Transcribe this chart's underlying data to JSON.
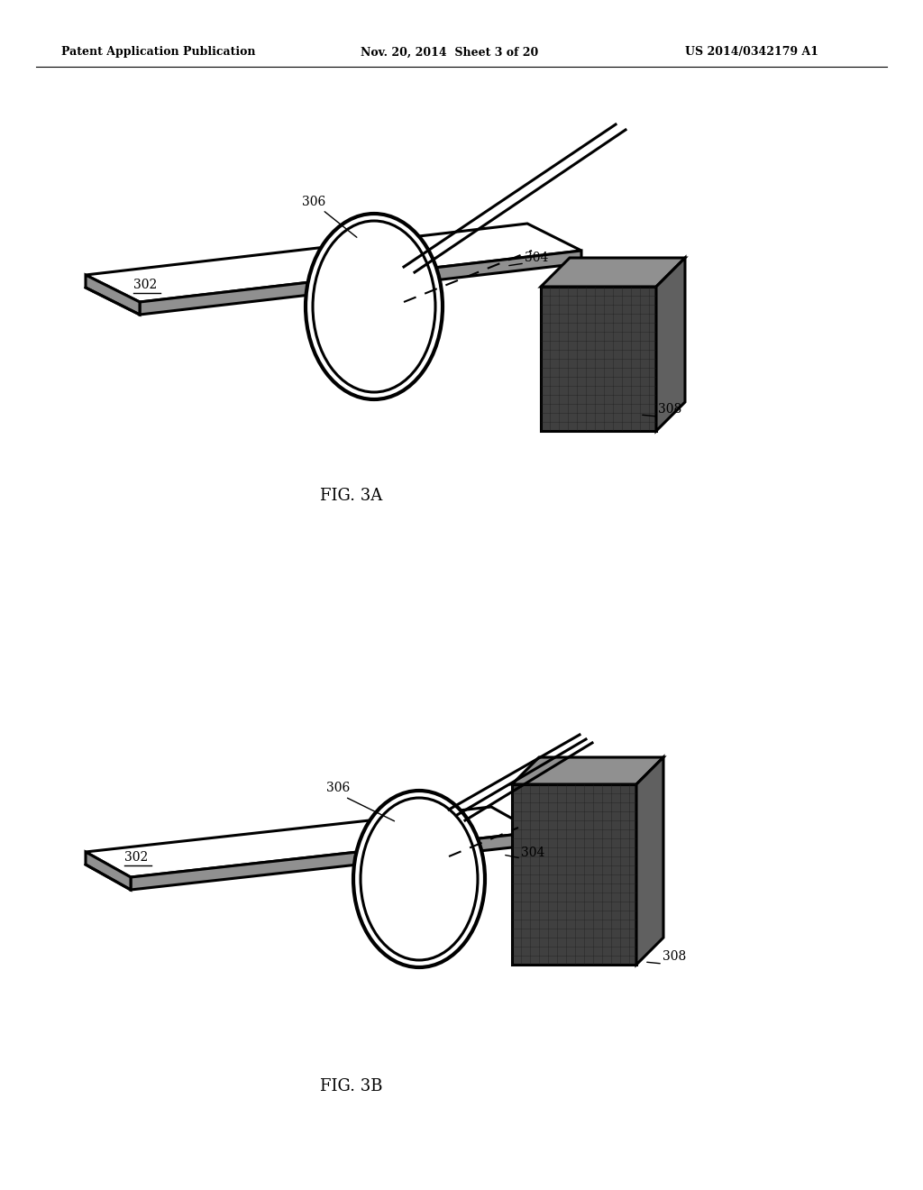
{
  "bg_color": "#ffffff",
  "text_color": "#000000",
  "line_color": "#000000",
  "header_left": "Patent Application Publication",
  "header_mid": "Nov. 20, 2014  Sheet 3 of 20",
  "header_right": "US 2014/0342179 A1",
  "fig3a_label": "FIG. 3A",
  "fig3b_label": "FIG. 3B",
  "label_302": "302",
  "label_304": "304",
  "label_306": "306",
  "label_308": "308",
  "dark_gray": "#404040",
  "mid_gray": "#909090",
  "side_gray": "#606060"
}
